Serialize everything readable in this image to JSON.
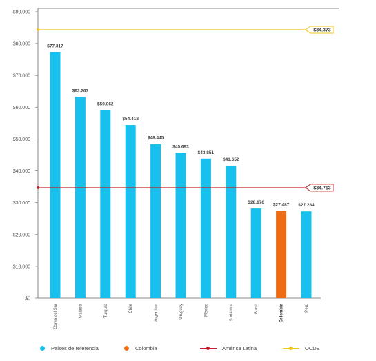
{
  "chart_data": {
    "type": "bar",
    "categories": [
      "Corea del Sur",
      "Malasia",
      "Turquía",
      "Chile",
      "Argentina",
      "Uruguay",
      "México",
      "Sudáfrica",
      "Brasil",
      "Colombia",
      "Perú"
    ],
    "values": [
      77317,
      63267,
      59062,
      54418,
      48445,
      45693,
      43851,
      41652,
      28176,
      27487,
      27284
    ],
    "value_labels": [
      "$77.317",
      "$63.267",
      "$59.062",
      "$54.418",
      "$48.445",
      "$45.693",
      "$43.851",
      "$41.652",
      "$28.176",
      "$27.487",
      "$27.284"
    ],
    "highlight_category": "Colombia",
    "ylim": [
      0,
      90000
    ],
    "y_ticks": [
      0,
      10000,
      20000,
      30000,
      40000,
      50000,
      60000,
      70000,
      80000,
      90000
    ],
    "y_tick_labels": [
      "$0",
      "$10.000",
      "$20.000",
      "$30.000",
      "$40.000",
      "$50.000",
      "$60.000",
      "$70.000",
      "$80.000",
      "$90.000"
    ],
    "reference_lines": [
      {
        "name": "OCDE",
        "value": 84373,
        "label": "$84.373",
        "color": "#f2c418"
      },
      {
        "name": "América Latina",
        "value": 34713,
        "label": "$34.713",
        "color": "#c0202a"
      }
    ],
    "legend": [
      {
        "label": "Países de referencia",
        "marker": "dot",
        "color": "#18c0ee"
      },
      {
        "label": "Colombia",
        "marker": "dot",
        "color": "#ee6c14"
      },
      {
        "label": "América Latina",
        "marker": "line",
        "color": "#c0202a"
      },
      {
        "label": "OCDE",
        "marker": "line",
        "color": "#f2c418"
      }
    ],
    "legend_placement": "bottom",
    "grid": false,
    "colors": {
      "bar": "#18c0ee",
      "highlight": "#ee6c14",
      "axis": "#888888"
    }
  }
}
